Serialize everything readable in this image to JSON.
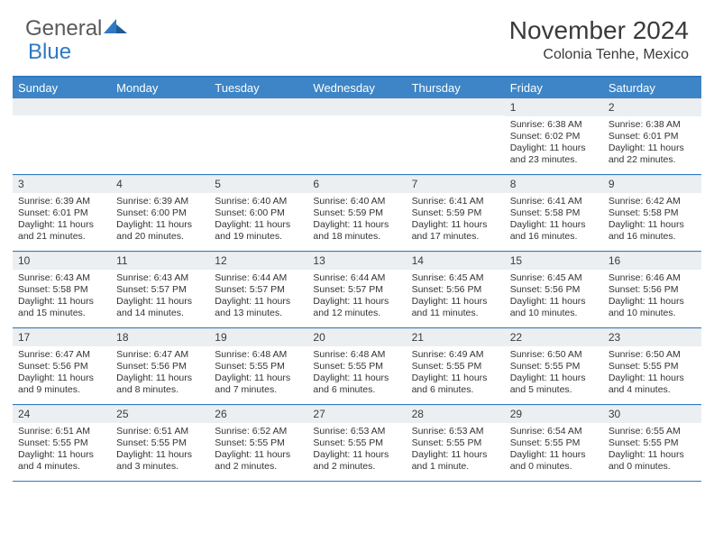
{
  "brand": {
    "part1": "General",
    "part2": "Blue"
  },
  "title": "November 2024",
  "location": "Colonia Tenhe, Mexico",
  "colors": {
    "header_bg": "#3d85c6",
    "accent_border": "#2f79c2",
    "daynum_bg": "#eceff1",
    "text": "#333333"
  },
  "day_names": [
    "Sunday",
    "Monday",
    "Tuesday",
    "Wednesday",
    "Thursday",
    "Friday",
    "Saturday"
  ],
  "weeks": [
    [
      {
        "n": "",
        "sr": "",
        "ss": "",
        "d1": "",
        "d2": ""
      },
      {
        "n": "",
        "sr": "",
        "ss": "",
        "d1": "",
        "d2": ""
      },
      {
        "n": "",
        "sr": "",
        "ss": "",
        "d1": "",
        "d2": ""
      },
      {
        "n": "",
        "sr": "",
        "ss": "",
        "d1": "",
        "d2": ""
      },
      {
        "n": "",
        "sr": "",
        "ss": "",
        "d1": "",
        "d2": ""
      },
      {
        "n": "1",
        "sr": "Sunrise: 6:38 AM",
        "ss": "Sunset: 6:02 PM",
        "d1": "Daylight: 11 hours",
        "d2": "and 23 minutes."
      },
      {
        "n": "2",
        "sr": "Sunrise: 6:38 AM",
        "ss": "Sunset: 6:01 PM",
        "d1": "Daylight: 11 hours",
        "d2": "and 22 minutes."
      }
    ],
    [
      {
        "n": "3",
        "sr": "Sunrise: 6:39 AM",
        "ss": "Sunset: 6:01 PM",
        "d1": "Daylight: 11 hours",
        "d2": "and 21 minutes."
      },
      {
        "n": "4",
        "sr": "Sunrise: 6:39 AM",
        "ss": "Sunset: 6:00 PM",
        "d1": "Daylight: 11 hours",
        "d2": "and 20 minutes."
      },
      {
        "n": "5",
        "sr": "Sunrise: 6:40 AM",
        "ss": "Sunset: 6:00 PM",
        "d1": "Daylight: 11 hours",
        "d2": "and 19 minutes."
      },
      {
        "n": "6",
        "sr": "Sunrise: 6:40 AM",
        "ss": "Sunset: 5:59 PM",
        "d1": "Daylight: 11 hours",
        "d2": "and 18 minutes."
      },
      {
        "n": "7",
        "sr": "Sunrise: 6:41 AM",
        "ss": "Sunset: 5:59 PM",
        "d1": "Daylight: 11 hours",
        "d2": "and 17 minutes."
      },
      {
        "n": "8",
        "sr": "Sunrise: 6:41 AM",
        "ss": "Sunset: 5:58 PM",
        "d1": "Daylight: 11 hours",
        "d2": "and 16 minutes."
      },
      {
        "n": "9",
        "sr": "Sunrise: 6:42 AM",
        "ss": "Sunset: 5:58 PM",
        "d1": "Daylight: 11 hours",
        "d2": "and 16 minutes."
      }
    ],
    [
      {
        "n": "10",
        "sr": "Sunrise: 6:43 AM",
        "ss": "Sunset: 5:58 PM",
        "d1": "Daylight: 11 hours",
        "d2": "and 15 minutes."
      },
      {
        "n": "11",
        "sr": "Sunrise: 6:43 AM",
        "ss": "Sunset: 5:57 PM",
        "d1": "Daylight: 11 hours",
        "d2": "and 14 minutes."
      },
      {
        "n": "12",
        "sr": "Sunrise: 6:44 AM",
        "ss": "Sunset: 5:57 PM",
        "d1": "Daylight: 11 hours",
        "d2": "and 13 minutes."
      },
      {
        "n": "13",
        "sr": "Sunrise: 6:44 AM",
        "ss": "Sunset: 5:57 PM",
        "d1": "Daylight: 11 hours",
        "d2": "and 12 minutes."
      },
      {
        "n": "14",
        "sr": "Sunrise: 6:45 AM",
        "ss": "Sunset: 5:56 PM",
        "d1": "Daylight: 11 hours",
        "d2": "and 11 minutes."
      },
      {
        "n": "15",
        "sr": "Sunrise: 6:45 AM",
        "ss": "Sunset: 5:56 PM",
        "d1": "Daylight: 11 hours",
        "d2": "and 10 minutes."
      },
      {
        "n": "16",
        "sr": "Sunrise: 6:46 AM",
        "ss": "Sunset: 5:56 PM",
        "d1": "Daylight: 11 hours",
        "d2": "and 10 minutes."
      }
    ],
    [
      {
        "n": "17",
        "sr": "Sunrise: 6:47 AM",
        "ss": "Sunset: 5:56 PM",
        "d1": "Daylight: 11 hours",
        "d2": "and 9 minutes."
      },
      {
        "n": "18",
        "sr": "Sunrise: 6:47 AM",
        "ss": "Sunset: 5:56 PM",
        "d1": "Daylight: 11 hours",
        "d2": "and 8 minutes."
      },
      {
        "n": "19",
        "sr": "Sunrise: 6:48 AM",
        "ss": "Sunset: 5:55 PM",
        "d1": "Daylight: 11 hours",
        "d2": "and 7 minutes."
      },
      {
        "n": "20",
        "sr": "Sunrise: 6:48 AM",
        "ss": "Sunset: 5:55 PM",
        "d1": "Daylight: 11 hours",
        "d2": "and 6 minutes."
      },
      {
        "n": "21",
        "sr": "Sunrise: 6:49 AM",
        "ss": "Sunset: 5:55 PM",
        "d1": "Daylight: 11 hours",
        "d2": "and 6 minutes."
      },
      {
        "n": "22",
        "sr": "Sunrise: 6:50 AM",
        "ss": "Sunset: 5:55 PM",
        "d1": "Daylight: 11 hours",
        "d2": "and 5 minutes."
      },
      {
        "n": "23",
        "sr": "Sunrise: 6:50 AM",
        "ss": "Sunset: 5:55 PM",
        "d1": "Daylight: 11 hours",
        "d2": "and 4 minutes."
      }
    ],
    [
      {
        "n": "24",
        "sr": "Sunrise: 6:51 AM",
        "ss": "Sunset: 5:55 PM",
        "d1": "Daylight: 11 hours",
        "d2": "and 4 minutes."
      },
      {
        "n": "25",
        "sr": "Sunrise: 6:51 AM",
        "ss": "Sunset: 5:55 PM",
        "d1": "Daylight: 11 hours",
        "d2": "and 3 minutes."
      },
      {
        "n": "26",
        "sr": "Sunrise: 6:52 AM",
        "ss": "Sunset: 5:55 PM",
        "d1": "Daylight: 11 hours",
        "d2": "and 2 minutes."
      },
      {
        "n": "27",
        "sr": "Sunrise: 6:53 AM",
        "ss": "Sunset: 5:55 PM",
        "d1": "Daylight: 11 hours",
        "d2": "and 2 minutes."
      },
      {
        "n": "28",
        "sr": "Sunrise: 6:53 AM",
        "ss": "Sunset: 5:55 PM",
        "d1": "Daylight: 11 hours",
        "d2": "and 1 minute."
      },
      {
        "n": "29",
        "sr": "Sunrise: 6:54 AM",
        "ss": "Sunset: 5:55 PM",
        "d1": "Daylight: 11 hours",
        "d2": "and 0 minutes."
      },
      {
        "n": "30",
        "sr": "Sunrise: 6:55 AM",
        "ss": "Sunset: 5:55 PM",
        "d1": "Daylight: 11 hours",
        "d2": "and 0 minutes."
      }
    ]
  ]
}
